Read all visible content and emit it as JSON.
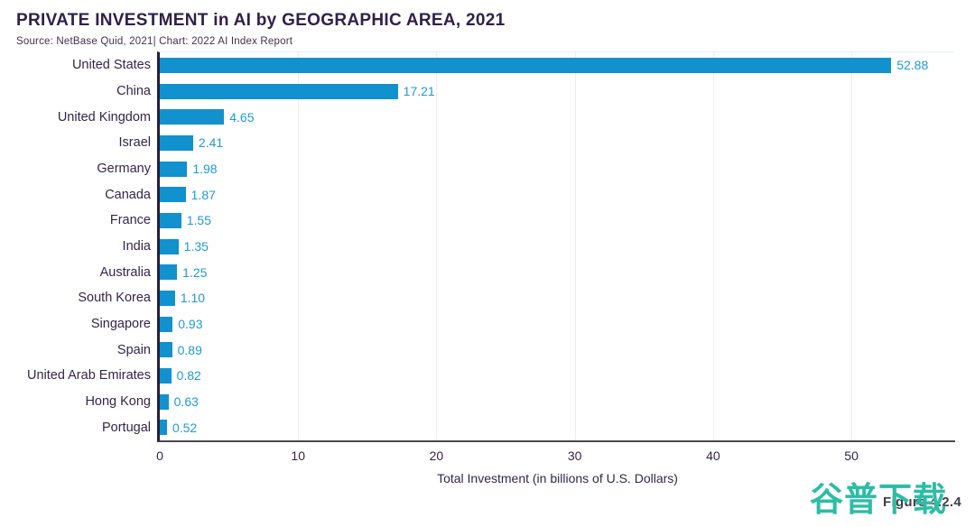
{
  "header": {
    "title": "PRIVATE INVESTMENT in AI by GEOGRAPHIC AREA, 2021",
    "source": "Source: NetBase Quid, 2021| Chart: 2022 AI Index Report"
  },
  "chart_data": {
    "type": "bar",
    "orientation": "horizontal",
    "title": "PRIVATE INVESTMENT in AI by GEOGRAPHIC AREA, 2021",
    "source": "Source: NetBase Quid, 2021| Chart: 2022 AI Index Report",
    "categories": [
      "United States",
      "China",
      "United Kingdom",
      "Israel",
      "Germany",
      "Canada",
      "France",
      "India",
      "Australia",
      "South Korea",
      "Singapore",
      "Spain",
      "United Arab Emirates",
      "Hong Kong",
      "Portugal"
    ],
    "values": [
      52.88,
      17.21,
      4.65,
      2.41,
      1.98,
      1.87,
      1.55,
      1.35,
      1.25,
      1.1,
      0.93,
      0.89,
      0.82,
      0.63,
      0.52
    ],
    "value_labels": [
      "52.88",
      "17.21",
      "4.65",
      "2.41",
      "1.98",
      "1.87",
      "1.55",
      "1.35",
      "1.25",
      "1.10",
      "0.93",
      "0.89",
      "0.82",
      "0.63",
      "0.52"
    ],
    "xlabel": "Total Investment (in billions of U.S. Dollars)",
    "xticks": [
      0,
      10,
      20,
      30,
      40,
      50
    ],
    "xlim": [
      0,
      57.5
    ],
    "grid": "vertical-light",
    "legend": "none",
    "colors": {
      "bar": "#1291cf",
      "value_label": "#1e9ad5",
      "category_label": "#35244a",
      "gridline": "#ededf1",
      "y_axis": "#2b1e38",
      "x_axis": "#4b4754"
    }
  },
  "footer": {
    "figure_label": "Figure 4.2.4",
    "watermark_text": "谷普下载",
    "watermark_color": "#2cbda6"
  }
}
